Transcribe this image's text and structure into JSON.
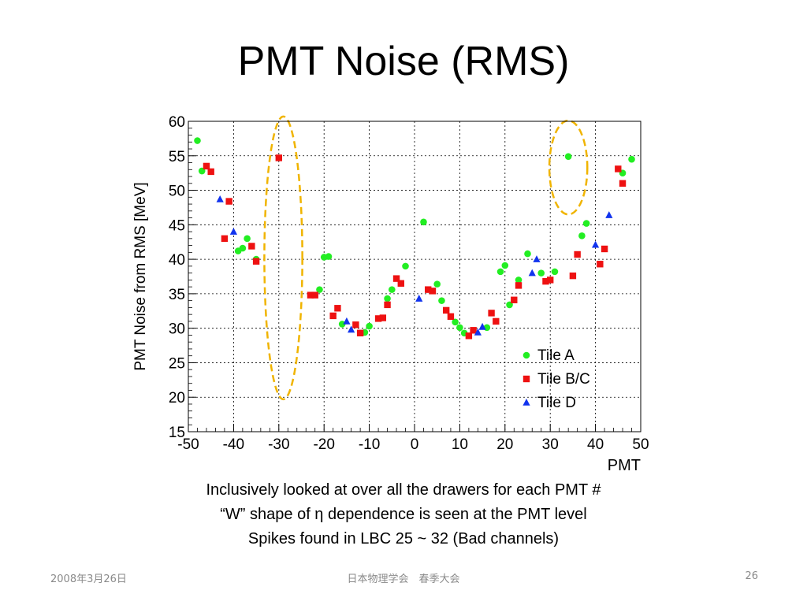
{
  "slide": {
    "title": "PMT Noise (RMS)",
    "caption_lines": [
      "Inclusively looked at over all the drawers for each PMT #",
      "“W” shape of η dependence is seen at the PMT level",
      "Spikes found in LBC 25 ~ 32 (Bad channels)"
    ],
    "footer": {
      "date": "2008年3月26日",
      "event": "日本物理学会　春季大会",
      "page": "26"
    }
  },
  "chart_data": {
    "type": "scatter",
    "title": "",
    "xlabel": "PMT",
    "ylabel": "PMT Noise from RMS [MeV]",
    "xlim": [
      -50,
      50
    ],
    "ylim": [
      15,
      60
    ],
    "xticks": [
      -50,
      -40,
      -30,
      -20,
      -10,
      0,
      10,
      20,
      30,
      40,
      50
    ],
    "yticks": [
      15,
      20,
      25,
      30,
      35,
      40,
      45,
      50,
      55,
      60
    ],
    "grid": true,
    "legend": {
      "position": "bottom-right"
    },
    "series": [
      {
        "name": "Tile A",
        "color": "#22ee22",
        "marker": "circle",
        "points": [
          [
            -48,
            57.2
          ],
          [
            -47,
            52.8
          ],
          [
            -39,
            41.2
          ],
          [
            -38,
            41.6
          ],
          [
            -37,
            43.0
          ],
          [
            -35,
            40.0
          ],
          [
            -21,
            35.6
          ],
          [
            -20,
            40.3
          ],
          [
            -19,
            40.4
          ],
          [
            -16,
            30.6
          ],
          [
            -11,
            29.4
          ],
          [
            -10,
            30.3
          ],
          [
            -6,
            34.3
          ],
          [
            -5,
            35.6
          ],
          [
            -2,
            39.0
          ],
          [
            2,
            45.4
          ],
          [
            5,
            36.4
          ],
          [
            6,
            34.0
          ],
          [
            9,
            30.9
          ],
          [
            10,
            30.1
          ],
          [
            11,
            29.3
          ],
          [
            16,
            30.1
          ],
          [
            19,
            38.2
          ],
          [
            20,
            39.1
          ],
          [
            21,
            33.4
          ],
          [
            23,
            37.0
          ],
          [
            25,
            40.8
          ],
          [
            28,
            38.0
          ],
          [
            31,
            38.2
          ],
          [
            34,
            54.9
          ],
          [
            37,
            43.4
          ],
          [
            38,
            45.2
          ],
          [
            46,
            52.5
          ],
          [
            48,
            54.5
          ]
        ]
      },
      {
        "name": "Tile B/C",
        "color": "#ee1111",
        "marker": "square",
        "points": [
          [
            -46,
            53.5
          ],
          [
            -45,
            52.7
          ],
          [
            -42,
            43.0
          ],
          [
            -41,
            48.4
          ],
          [
            -36,
            41.9
          ],
          [
            -35,
            39.7
          ],
          [
            -30,
            54.7
          ],
          [
            -23,
            34.8
          ],
          [
            -22,
            34.8
          ],
          [
            -18,
            31.8
          ],
          [
            -17,
            32.9
          ],
          [
            -13,
            30.5
          ],
          [
            -12,
            29.3
          ],
          [
            -8,
            31.4
          ],
          [
            -7,
            31.5
          ],
          [
            -6,
            33.4
          ],
          [
            -4,
            37.2
          ],
          [
            -3,
            36.5
          ],
          [
            3,
            35.6
          ],
          [
            4,
            35.4
          ],
          [
            7,
            32.6
          ],
          [
            8,
            31.7
          ],
          [
            12,
            28.9
          ],
          [
            13,
            29.7
          ],
          [
            17,
            32.2
          ],
          [
            18,
            31.0
          ],
          [
            22,
            34.1
          ],
          [
            23,
            36.2
          ],
          [
            29,
            36.8
          ],
          [
            30,
            37.0
          ],
          [
            35,
            37.6
          ],
          [
            36,
            40.7
          ],
          [
            41,
            39.3
          ],
          [
            42,
            41.5
          ],
          [
            45,
            53.1
          ],
          [
            46,
            51.0
          ]
        ]
      },
      {
        "name": "Tile D",
        "color": "#1133ee",
        "marker": "triangle",
        "points": [
          [
            -43,
            48.7
          ],
          [
            -40,
            44.0
          ],
          [
            -15,
            31.0
          ],
          [
            -14,
            29.8
          ],
          [
            1,
            34.3
          ],
          [
            14,
            29.4
          ],
          [
            15,
            30.2
          ],
          [
            26,
            38.0
          ],
          [
            27,
            40.0
          ],
          [
            40,
            42.1
          ],
          [
            43,
            46.4
          ]
        ]
      }
    ],
    "annotations": [
      {
        "kind": "ellipse",
        "color": "#f0b400",
        "dash": true,
        "x_center": -29,
        "y_center": 40.2,
        "x_radius": 4.2,
        "y_radius": 20.5
      },
      {
        "kind": "ellipse",
        "color": "#f0b400",
        "dash": true,
        "x_center": 34,
        "y_center": 53.3,
        "x_radius": 4.2,
        "y_radius": 6.8
      }
    ]
  }
}
